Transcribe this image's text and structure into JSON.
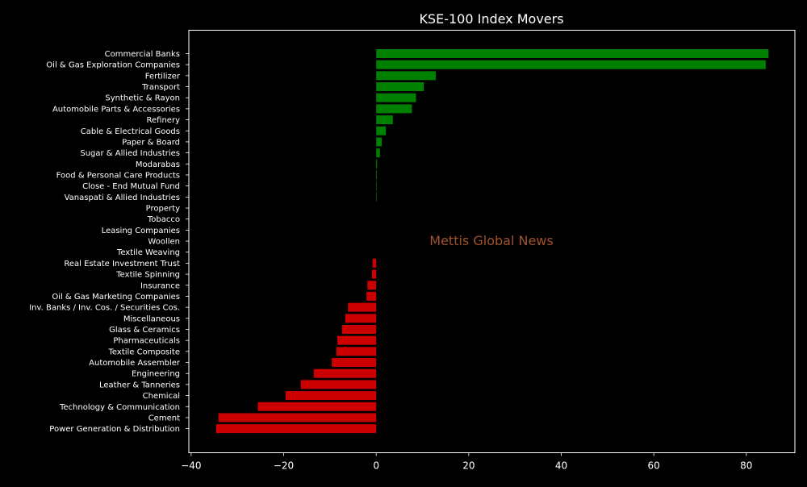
{
  "chart_data": {
    "type": "bar",
    "orientation": "horizontal",
    "title": "KSE-100 Index Movers",
    "watermark": "Mettis Global News",
    "xlabel": "",
    "ylabel": "",
    "xlim": [
      -40.5,
      90.5
    ],
    "xticks": [
      -40,
      -20,
      0,
      20,
      40,
      60,
      80
    ],
    "grid": false,
    "colors": {
      "positive": "#008000",
      "negative": "#CC0000",
      "background": "#000000",
      "text": "#FFFFFF",
      "watermark": "#A0522D"
    },
    "categories": [
      "Commercial Banks",
      "Oil & Gas Exploration Companies",
      "Fertilizer",
      "Transport",
      "Synthetic & Rayon",
      "Automobile Parts & Accessories",
      "Refinery",
      "Cable & Electrical Goods",
      "Paper & Board",
      "Sugar & Allied Industries",
      "Modarabas",
      "Food & Personal Care Products",
      "Close - End Mutual Fund",
      "Vanaspati & Allied Industries",
      "Property",
      "Tobacco",
      "Leasing Companies",
      "Woollen",
      "Textile Weaving",
      "Real Estate Investment Trust",
      "Textile Spinning",
      "Insurance",
      "Oil & Gas Marketing Companies",
      "Inv. Banks / Inv. Cos. / Securities Cos.",
      "Miscellaneous",
      "Glass & Ceramics",
      "Pharmaceuticals",
      "Textile Composite",
      "Automobile Assembler",
      "Engineering",
      "Leather & Tanneries",
      "Chemical",
      "Technology & Communication",
      "Cement",
      "Power Generation & Distribution"
    ],
    "values": [
      84.8,
      84.2,
      12.9,
      10.3,
      8.6,
      7.7,
      3.6,
      2.1,
      1.2,
      0.8,
      0.2,
      0.15,
      0.1,
      0.05,
      0,
      0,
      0,
      0,
      0,
      -0.8,
      -0.9,
      -1.9,
      -2.1,
      -6.1,
      -6.7,
      -7.4,
      -8.4,
      -8.6,
      -9.6,
      -13.5,
      -16.3,
      -19.6,
      -25.6,
      -34.1,
      -34.6
    ]
  }
}
